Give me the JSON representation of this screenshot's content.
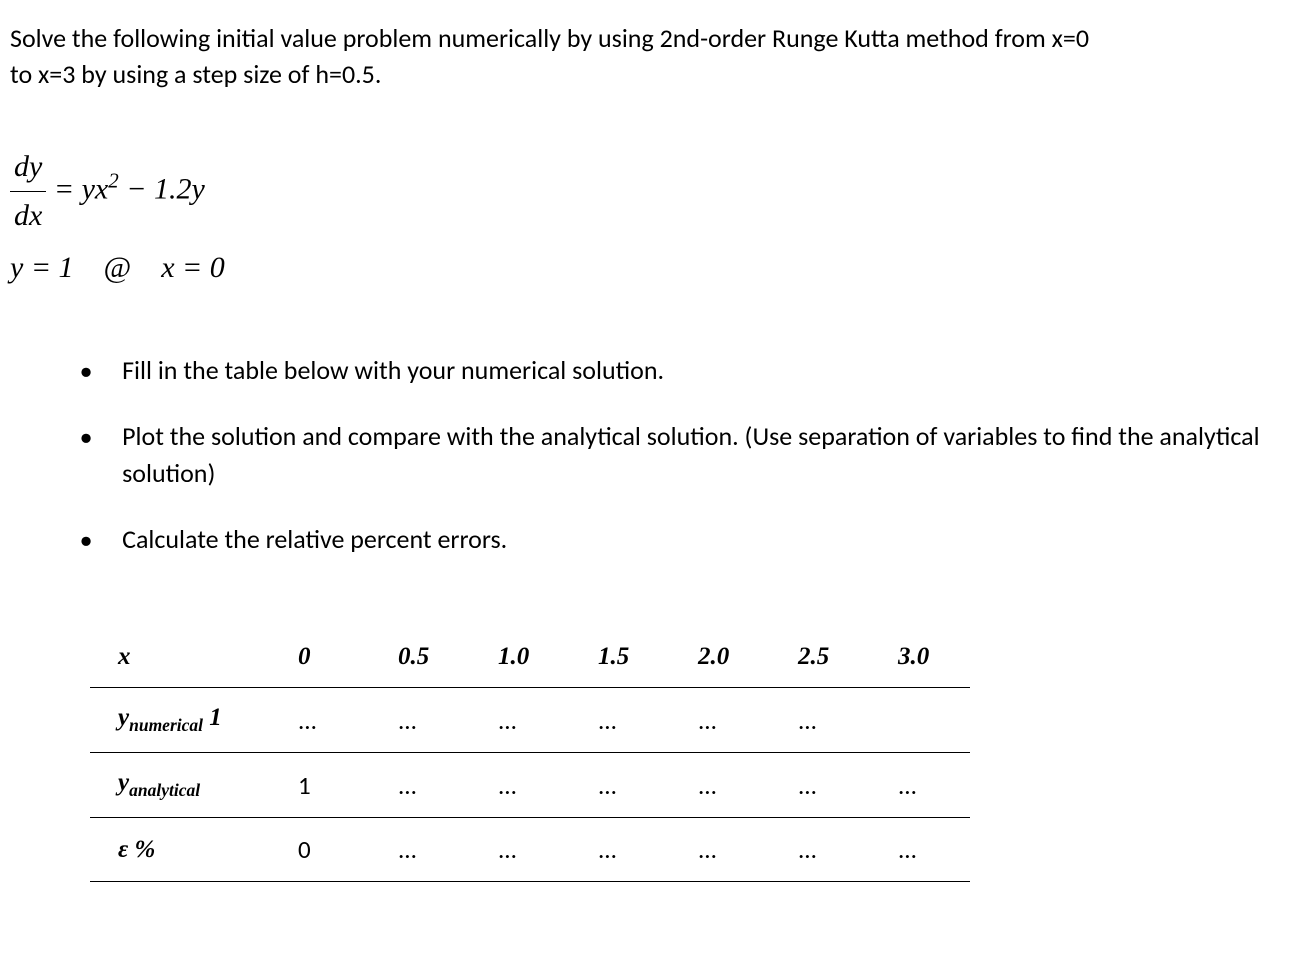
{
  "problem": {
    "line1": "Solve the following initial value problem numerically by using 2nd-order Runge Kutta method from x=0",
    "line2": "to x=3 by using a step size of h=0.5."
  },
  "equation": {
    "lhs_num": "dy",
    "lhs_den": "dx",
    "rhs_part1": "= yx",
    "rhs_exp": "2",
    "rhs_part2": " − 1.2y",
    "ic_y": "y = 1",
    "ic_at": "@",
    "ic_x": "x = 0"
  },
  "bullets": [
    "Fill in the table below with your numerical solution.",
    "Plot the solution and compare with the analytical solution. (Use separation of variables to find the analytical solution)",
    "Calculate the relative percent errors."
  ],
  "table": {
    "header_label": "x",
    "x_values": [
      "0",
      "0.5",
      "1.0",
      "1.5",
      "2.0",
      "2.5",
      "3.0"
    ],
    "rows": [
      {
        "label_main": "y",
        "label_sub": "numerical",
        "label_after": " 1",
        "values": [
          "...",
          "...",
          "...",
          "...",
          "...",
          "...",
          ""
        ]
      },
      {
        "label_main": "y",
        "label_sub": "analytical",
        "label_after": "",
        "values": [
          "1",
          "...",
          "...",
          "...",
          "...",
          "...",
          "..."
        ]
      },
      {
        "label_main": "ε %",
        "label_sub": "",
        "label_after": "",
        "values": [
          "0",
          "...",
          "...",
          "...",
          "...",
          "...",
          "..."
        ]
      }
    ]
  }
}
